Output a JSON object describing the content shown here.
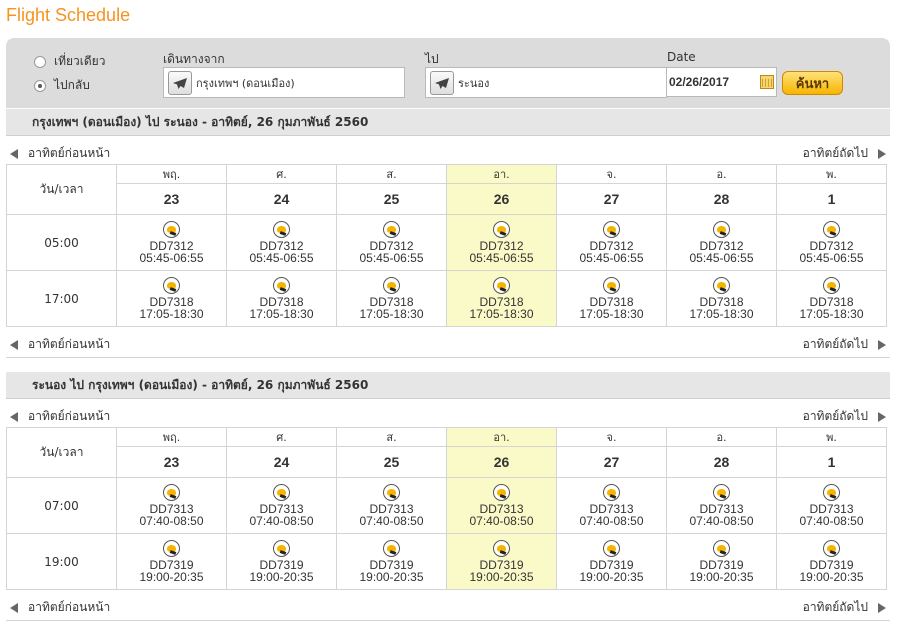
{
  "page": {
    "title": "Flight Schedule"
  },
  "search": {
    "trip_types": [
      {
        "label": "เที่ยวเดียว",
        "selected": false
      },
      {
        "label": "ไปกลับ",
        "selected": true
      }
    ],
    "origin_label": "เดินทางจาก",
    "origin_value": "กรุงเทพฯ (ดอนเมือง)",
    "destination_label": "ไป",
    "destination_value": "ระนอง",
    "date_label": "Date",
    "date_value": "02/26/2017",
    "button_label": "ค้นหา"
  },
  "nav": {
    "prev_label": "อาทิตย์ก่อนหน้า",
    "next_label": "อาทิตย์ถัดไป"
  },
  "corner_label": "วัน/เวลา",
  "days": [
    {
      "dow": "พฤ.",
      "num": "23"
    },
    {
      "dow": "ศ.",
      "num": "24"
    },
    {
      "dow": "ส.",
      "num": "25"
    },
    {
      "dow": "อา.",
      "num": "26"
    },
    {
      "dow": "จ.",
      "num": "27"
    },
    {
      "dow": "อ.",
      "num": "28"
    },
    {
      "dow": "พ.",
      "num": "1"
    }
  ],
  "highlight_day_index": 3,
  "sections": [
    {
      "header": "กรุงเทพฯ (ดอนเมือง) ไป ระนอง - อาทิตย์, 26 กุมภาพันธ์ 2560",
      "rows": [
        {
          "time": "05:00",
          "flight": "DD7312",
          "hours": "05:45-06:55"
        },
        {
          "time": "17:00",
          "flight": "DD7318",
          "hours": "17:05-18:30"
        }
      ]
    },
    {
      "header": "ระนอง ไป กรุงเทพฯ (ดอนเมือง) - อาทิตย์, 26 กุมภาพันธ์ 2560",
      "rows": [
        {
          "time": "07:00",
          "flight": "DD7313",
          "hours": "07:40-08:50"
        },
        {
          "time": "19:00",
          "flight": "DD7319",
          "hours": "19:00-20:35"
        }
      ]
    }
  ],
  "colors": {
    "title": "#f7931e",
    "highlight": "#fafac8",
    "button": "#f7b500"
  },
  "icons": {
    "airline": "nok-bird-icon",
    "plane": "airplane-icon",
    "calendar": "calendar-icon"
  }
}
